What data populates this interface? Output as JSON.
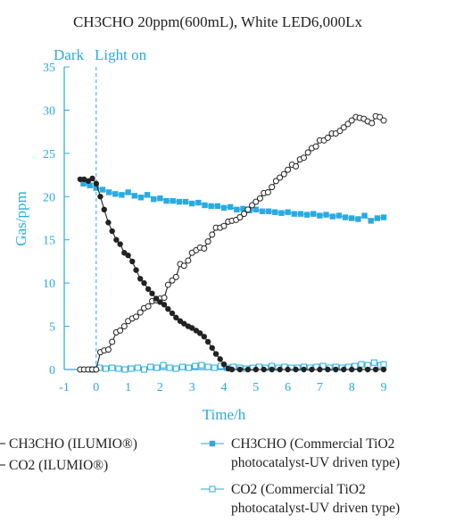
{
  "colors": {
    "accent": "#29abe2",
    "ilumio": "#222222",
    "text": "#222222"
  },
  "chart_data": {
    "type": "line",
    "title": "CH3CHO 20ppm(600mL), White LED6,000Lx",
    "annotations": {
      "dark": "Dark",
      "light_on": "Light on",
      "light_on_x": 0
    },
    "xlabel": "Time/h",
    "ylabel": "Gas/ppm",
    "xlim": [
      -1,
      9
    ],
    "ylim": [
      0,
      35
    ],
    "xticks": [
      "-1",
      "0",
      "1",
      "2",
      "3",
      "4",
      "5",
      "6",
      "7",
      "8",
      "9"
    ],
    "xtick_values": [
      -1,
      0,
      1,
      2,
      3,
      4,
      5,
      6,
      7,
      8,
      9
    ],
    "yticks": [
      "0",
      "5",
      "10",
      "15",
      "20",
      "25",
      "30",
      "35"
    ],
    "ytick_values": [
      0,
      5,
      10,
      15,
      20,
      25,
      30,
      35
    ],
    "grid": false,
    "legend_position": "bottom",
    "series": [
      {
        "name": "CH3CHO (ILUMIO®)",
        "legend_lines": [
          "CH3CHO (ILUMIO®)"
        ],
        "color": "#222222",
        "marker": "filled-circle",
        "x": [
          -0.5,
          -0.38,
          -0.25,
          -0.12,
          0,
          0.13,
          0.25,
          0.38,
          0.5,
          0.63,
          0.75,
          0.88,
          1,
          1.13,
          1.25,
          1.38,
          1.5,
          1.63,
          1.75,
          1.88,
          2,
          2.13,
          2.25,
          2.38,
          2.5,
          2.63,
          2.75,
          2.88,
          3,
          3.13,
          3.25,
          3.38,
          3.5,
          3.63,
          3.75,
          3.88,
          4,
          4.13,
          4.25,
          4.5,
          4.75,
          5,
          5.25,
          5.5,
          5.75,
          6,
          6.25,
          6.5,
          6.75,
          7,
          7.25,
          7.5,
          7.75,
          8,
          8.25,
          8.5,
          8.75,
          9
        ],
        "values": [
          22,
          22,
          21.8,
          22.1,
          21.5,
          20,
          18.5,
          17,
          16,
          15,
          14.5,
          13.5,
          13.2,
          12.5,
          11.5,
          10.5,
          10,
          9.3,
          8.8,
          8.2,
          7.8,
          7.5,
          7,
          6.5,
          6,
          5.6,
          5.3,
          5,
          4.8,
          4.5,
          4.2,
          3.8,
          3.2,
          2.5,
          1.8,
          1.2,
          0.6,
          0.1,
          0,
          0,
          0,
          0,
          0,
          0,
          0,
          0,
          0,
          0,
          0,
          0,
          0,
          0,
          0,
          0,
          0,
          0,
          0,
          0
        ]
      },
      {
        "name": "CO2 (ILUMIO®)",
        "legend_lines": [
          "CO2 (ILUMIO®)"
        ],
        "color": "#222222",
        "marker": "open-circle",
        "x": [
          -0.5,
          -0.38,
          -0.25,
          -0.12,
          0,
          0.13,
          0.25,
          0.38,
          0.5,
          0.63,
          0.75,
          0.88,
          1,
          1.13,
          1.25,
          1.38,
          1.5,
          1.63,
          1.75,
          1.88,
          2,
          2.13,
          2.25,
          2.38,
          2.5,
          2.63,
          2.75,
          2.88,
          3,
          3.13,
          3.25,
          3.38,
          3.5,
          3.63,
          3.75,
          3.88,
          4,
          4.13,
          4.25,
          4.38,
          4.5,
          4.63,
          4.75,
          4.88,
          5,
          5.13,
          5.25,
          5.38,
          5.5,
          5.63,
          5.75,
          5.88,
          6,
          6.13,
          6.25,
          6.38,
          6.5,
          6.63,
          6.75,
          6.88,
          7,
          7.13,
          7.25,
          7.38,
          7.5,
          7.63,
          7.75,
          7.88,
          8,
          8.13,
          8.25,
          8.38,
          8.5,
          8.63,
          8.75,
          8.88,
          9
        ],
        "values": [
          0,
          0,
          0,
          0,
          0,
          2,
          2.2,
          2.3,
          3.2,
          4.3,
          4.5,
          5,
          5.6,
          5.9,
          6.1,
          6.6,
          7.1,
          7.3,
          7.9,
          8,
          8.2,
          8.3,
          9.8,
          10.3,
          10.7,
          12.2,
          12,
          12.6,
          13.5,
          13.8,
          14.1,
          14,
          14.8,
          15.6,
          16.4,
          16.4,
          16.6,
          17.1,
          17.2,
          17.3,
          17.6,
          18,
          18.5,
          19,
          19.4,
          19.8,
          20.4,
          20.5,
          21.1,
          21.8,
          22.2,
          22.6,
          23.1,
          23.7,
          23.5,
          24.3,
          24.5,
          25.1,
          25.6,
          25.8,
          26.5,
          26.5,
          26.8,
          27.3,
          27.3,
          27.6,
          28,
          28.4,
          28.8,
          29.2,
          29.1,
          29,
          28.7,
          28.5,
          29.3,
          29.2,
          28.8
        ]
      },
      {
        "name": "CH3CHO (Commercial TiO2 photocatalyst-UV driven type)",
        "legend_lines": [
          "CH3CHO (Commercial TiO2",
          "photocatalyst-UV driven type)"
        ],
        "color": "#29abe2",
        "marker": "filled-square",
        "x": [
          -0.4,
          -0.2,
          0,
          0.2,
          0.4,
          0.6,
          0.8,
          1,
          1.2,
          1.4,
          1.6,
          1.8,
          2,
          2.2,
          2.4,
          2.6,
          2.8,
          3,
          3.2,
          3.4,
          3.6,
          3.8,
          4,
          4.2,
          4.4,
          4.6,
          4.8,
          5,
          5.2,
          5.4,
          5.6,
          5.8,
          6,
          6.2,
          6.4,
          6.6,
          6.8,
          7,
          7.2,
          7.4,
          7.6,
          7.8,
          8,
          8.2,
          8.4,
          8.6,
          8.8,
          9
        ],
        "values": [
          21.5,
          21.3,
          21,
          20.8,
          20.5,
          20.3,
          20.2,
          20.5,
          20.1,
          19.9,
          20.2,
          19.7,
          19.8,
          19.5,
          19.5,
          19.4,
          19.4,
          19.2,
          19.3,
          19,
          18.9,
          18.9,
          18.7,
          18.8,
          18.5,
          18.6,
          18.4,
          18.5,
          18.3,
          18.3,
          18.2,
          18.1,
          18.2,
          18,
          18,
          17.9,
          18,
          17.8,
          17.9,
          17.7,
          17.8,
          17.6,
          17.5,
          17.4,
          17.8,
          17.2,
          17.5,
          17.6
        ]
      },
      {
        "name": "CO2 (Commercial TiO2 photocatalyst-UV driven type)",
        "legend_lines": [
          "CO2 (Commercial TiO2",
          "photocatalyst-UV driven type)"
        ],
        "color": "#29abe2",
        "marker": "open-square",
        "x": [
          -0.1,
          0.1,
          0.3,
          0.5,
          0.7,
          0.9,
          1.1,
          1.3,
          1.5,
          1.7,
          1.9,
          2.1,
          2.3,
          2.5,
          2.7,
          2.9,
          3.1,
          3.3,
          3.5,
          3.7,
          3.9,
          4.1,
          4.3,
          4.5,
          4.7,
          4.9,
          5.1,
          5.3,
          5.5,
          5.7,
          5.9,
          6.1,
          6.3,
          6.5,
          6.7,
          6.9,
          7.1,
          7.3,
          7.5,
          7.7,
          7.9,
          8.1,
          8.3,
          8.5,
          8.7,
          8.9,
          9
        ],
        "values": [
          0,
          0.2,
          0.1,
          0.2,
          0.1,
          0,
          0.1,
          0.2,
          0,
          0.3,
          0.2,
          0.5,
          0.2,
          0.1,
          0.3,
          0.2,
          0.4,
          0.5,
          0.3,
          0.2,
          0.4,
          0.2,
          0.3,
          0.2,
          0.1,
          0.2,
          0.3,
          0.2,
          0.4,
          0.2,
          0.3,
          0.2,
          0.2,
          0.3,
          0.2,
          0.3,
          0.4,
          0.2,
          0.3,
          0.2,
          0.3,
          0.4,
          0.6,
          0.5,
          0.8,
          0.5,
          0.6
        ]
      }
    ]
  }
}
